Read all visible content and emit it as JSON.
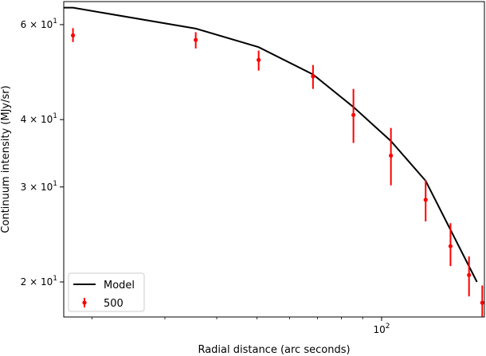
{
  "chart_data": {
    "type": "line",
    "title": "",
    "xlabel": "Radial distance (arc seconds)",
    "ylabel": "Continuum intensity (MJy/sr)",
    "xscale": "log",
    "yscale": "log",
    "xlim": [
      17.1,
      177
    ],
    "ylim": [
      17.22,
      66.2
    ],
    "x_ticks": [
      {
        "value": 100,
        "label": "10",
        "exp": "2"
      }
    ],
    "y_ticks": [
      {
        "value": 20,
        "label": "2 × 10",
        "exp": "1"
      },
      {
        "value": 30,
        "label": "3 × 10",
        "exp": "1"
      },
      {
        "value": 40,
        "label": "4 × 10",
        "exp": "1"
      },
      {
        "value": 60,
        "label": "6 × 10",
        "exp": "1"
      }
    ],
    "x_minor_ticks": [
      20,
      30,
      40,
      50,
      60,
      70,
      80,
      90
    ],
    "legend_position": "lower-left",
    "grid": false,
    "series": [
      {
        "name": "Model",
        "kind": "line",
        "color": "#000000",
        "x": [
          17.1,
          18.0,
          35.6,
          50.5,
          68.3,
          85.5,
          105.3,
          127.7,
          169.8
        ],
        "y": [
          64.5,
          64.5,
          59.0,
          54.5,
          48.5,
          42.2,
          36.5,
          30.8,
          20.0
        ]
      },
      {
        "name": "500",
        "kind": "errorbar",
        "color": "#ff0000",
        "x": [
          18.0,
          35.6,
          50.5,
          68.3,
          85.5,
          105.3,
          127.7,
          146.6,
          162.5,
          174.9
        ],
        "y": [
          57.3,
          56.2,
          51.6,
          48.1,
          40.8,
          34.3,
          28.4,
          23.3,
          20.6,
          18.3
        ],
        "yerr_low": [
          1.6,
          2.0,
          2.3,
          2.5,
          4.6,
          4.1,
          2.5,
          1.9,
          1.8,
          1.1
        ],
        "yerr_high": [
          1.8,
          1.9,
          2.1,
          2.4,
          4.8,
          4.3,
          2.5,
          2.4,
          1.7,
          1.4
        ]
      }
    ]
  }
}
